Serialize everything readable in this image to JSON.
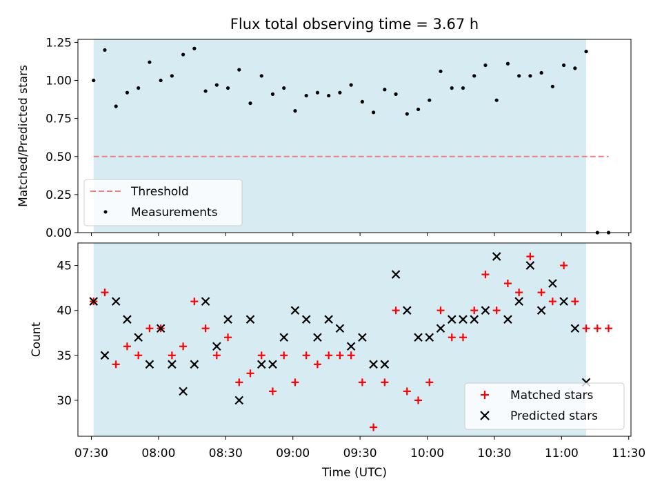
{
  "chart_data": [
    {
      "type": "scatter",
      "title": "Flux total observing time = 3.67 h",
      "xlabel": "",
      "ylabel": "Matched/Predicted stars",
      "xlim": [
        "07:24",
        "11:31"
      ],
      "ylim": [
        0,
        1.27
      ],
      "yticks": [
        "0.00",
        "0.25",
        "0.50",
        "0.75",
        "1.00",
        "1.25"
      ],
      "shaded_span": [
        "07:31",
        "11:11"
      ],
      "legend": {
        "placement": "lower-left",
        "entries": [
          "Threshold",
          "Measurements"
        ]
      },
      "series": [
        {
          "name": "Threshold",
          "style": "dashed-line",
          "color": "#f08080",
          "x": [
            "07:31",
            "11:21"
          ],
          "y": [
            0.5,
            0.5
          ]
        },
        {
          "name": "Measurements",
          "style": "dot",
          "color": "#000000",
          "x": [
            "07:31",
            "07:36",
            "07:41",
            "07:46",
            "07:51",
            "07:56",
            "08:01",
            "08:06",
            "08:11",
            "08:16",
            "08:21",
            "08:26",
            "08:31",
            "08:36",
            "08:41",
            "08:46",
            "08:51",
            "08:56",
            "09:01",
            "09:06",
            "09:11",
            "09:16",
            "09:21",
            "09:26",
            "09:31",
            "09:36",
            "09:41",
            "09:46",
            "09:51",
            "09:56",
            "10:01",
            "10:06",
            "10:11",
            "10:16",
            "10:21",
            "10:26",
            "10:31",
            "10:36",
            "10:41",
            "10:46",
            "10:51",
            "10:56",
            "11:01",
            "11:06",
            "11:11",
            "11:16",
            "11:21"
          ],
          "y": [
            1.0,
            1.2,
            0.83,
            0.92,
            0.95,
            1.12,
            1.0,
            1.03,
            1.17,
            1.21,
            0.93,
            0.97,
            0.95,
            1.07,
            0.85,
            1.03,
            0.91,
            0.95,
            0.8,
            0.9,
            0.92,
            0.9,
            0.92,
            0.97,
            0.86,
            0.79,
            0.94,
            0.91,
            0.78,
            0.81,
            0.87,
            1.06,
            0.95,
            0.95,
            1.03,
            1.1,
            0.87,
            1.11,
            1.03,
            1.03,
            1.05,
            0.96,
            1.1,
            1.08,
            1.19,
            0.0,
            0.0
          ]
        }
      ]
    },
    {
      "type": "scatter",
      "xlabel": "Time (UTC)",
      "ylabel": "Count",
      "xlim": [
        "07:24",
        "11:31"
      ],
      "ylim": [
        26,
        47.5
      ],
      "xticks": [
        "07:30",
        "08:00",
        "08:30",
        "09:00",
        "09:30",
        "10:00",
        "10:30",
        "11:00",
        "11:30"
      ],
      "yticks": [
        "30",
        "35",
        "40",
        "45"
      ],
      "shaded_span": [
        "07:31",
        "11:11"
      ],
      "legend": {
        "placement": "lower-right",
        "entries": [
          "Matched stars",
          "Predicted stars"
        ]
      },
      "series": [
        {
          "name": "Matched stars",
          "style": "plus",
          "color": "#ff0000",
          "x": [
            "07:31",
            "07:36",
            "07:41",
            "07:46",
            "07:51",
            "07:56",
            "08:01",
            "08:06",
            "08:11",
            "08:16",
            "08:21",
            "08:26",
            "08:31",
            "08:36",
            "08:41",
            "08:46",
            "08:51",
            "08:56",
            "09:01",
            "09:06",
            "09:11",
            "09:16",
            "09:21",
            "09:26",
            "09:31",
            "09:36",
            "09:41",
            "09:46",
            "09:51",
            "09:56",
            "10:01",
            "10:06",
            "10:11",
            "10:16",
            "10:21",
            "10:26",
            "10:31",
            "10:36",
            "10:41",
            "10:46",
            "10:51",
            "10:56",
            "11:01",
            "11:06",
            "11:11",
            "11:16",
            "11:21"
          ],
          "y": [
            41,
            42,
            34,
            36,
            35,
            38,
            38,
            35,
            36,
            41,
            38,
            35,
            37,
            32,
            33,
            35,
            31,
            35,
            32,
            35,
            34,
            35,
            35,
            35,
            32,
            27,
            32,
            40,
            31,
            30,
            32,
            40,
            37,
            37,
            40,
            44,
            40,
            43,
            42,
            46,
            42,
            41,
            45,
            41,
            38,
            38,
            38
          ]
        },
        {
          "name": "Predicted stars",
          "style": "x",
          "color": "#000000",
          "x": [
            "07:31",
            "07:36",
            "07:41",
            "07:46",
            "07:51",
            "07:56",
            "08:01",
            "08:06",
            "08:11",
            "08:16",
            "08:21",
            "08:26",
            "08:31",
            "08:36",
            "08:41",
            "08:46",
            "08:51",
            "08:56",
            "09:01",
            "09:06",
            "09:11",
            "09:16",
            "09:21",
            "09:26",
            "09:31",
            "09:36",
            "09:41",
            "09:46",
            "09:51",
            "09:56",
            "10:01",
            "10:06",
            "10:11",
            "10:16",
            "10:21",
            "10:26",
            "10:31",
            "10:36",
            "10:41",
            "10:46",
            "10:51",
            "10:56",
            "11:01",
            "11:06",
            "11:11"
          ],
          "y": [
            41,
            35,
            41,
            39,
            37,
            34,
            38,
            34,
            31,
            34,
            41,
            36,
            39,
            30,
            39,
            34,
            34,
            37,
            40,
            39,
            37,
            39,
            38,
            36,
            37,
            34,
            34,
            44,
            40,
            37,
            37,
            38,
            39,
            39,
            39,
            40,
            46,
            39,
            41,
            45,
            40,
            43,
            41,
            38,
            32
          ]
        }
      ]
    }
  ]
}
